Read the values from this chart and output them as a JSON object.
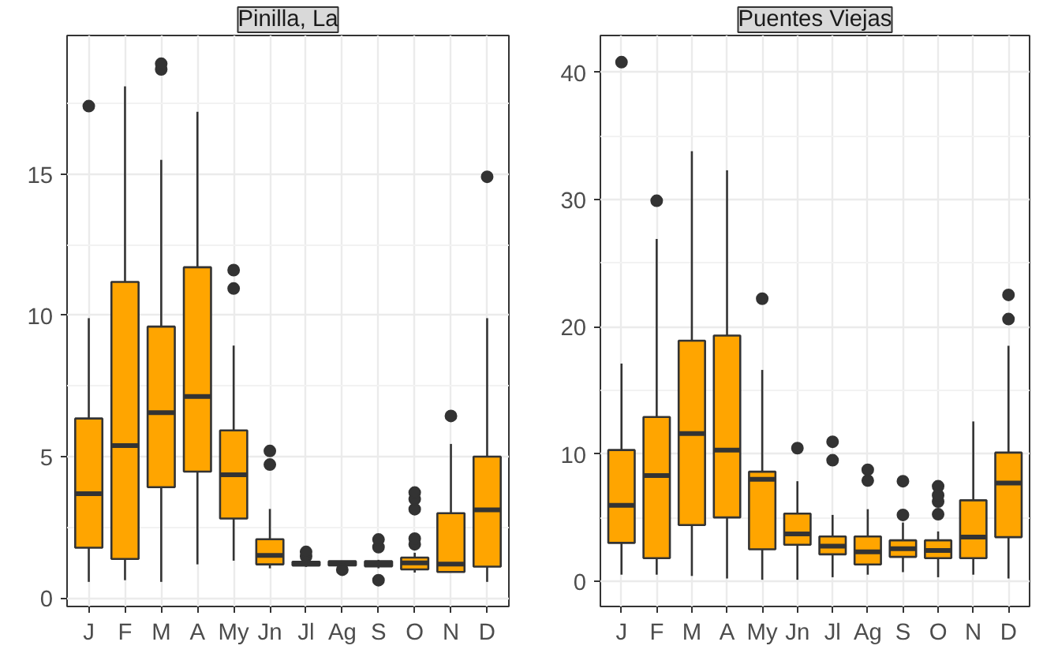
{
  "chart_data": [
    {
      "type": "box",
      "title": "Pinilla, La",
      "categories": [
        "J",
        "F",
        "M",
        "A",
        "My",
        "Jn",
        "Jl",
        "Ag",
        "S",
        "O",
        "N",
        "D"
      ],
      "color": "#ffa500",
      "ylim": [
        -0.3,
        19.9
      ],
      "yticks": [
        0,
        5,
        10,
        15
      ],
      "grid": true,
      "boxes": [
        {
          "low": 0.57,
          "q1": 1.78,
          "median": 3.69,
          "q3": 6.35,
          "high": 9.9,
          "outliers": [
            17.4
          ]
        },
        {
          "low": 0.63,
          "q1": 1.38,
          "median": 5.39,
          "q3": 11.18,
          "high": 18.1
        },
        {
          "low": 0.57,
          "q1": 3.92,
          "median": 6.56,
          "q3": 9.6,
          "high": 15.5,
          "outliers": [
            18.7,
            18.9
          ]
        },
        {
          "low": 1.19,
          "q1": 4.47,
          "median": 7.13,
          "q3": 11.7,
          "high": 17.2
        },
        {
          "low": 1.32,
          "q1": 2.81,
          "median": 4.36,
          "q3": 5.93,
          "high": 8.93,
          "outliers": [
            10.95,
            11.6
          ]
        },
        {
          "low": 1.05,
          "q1": 1.19,
          "median": 1.51,
          "q3": 2.08,
          "high": 3.15,
          "outliers": [
            4.72,
            5.2
          ]
        },
        {
          "low": 1.1,
          "q1": 1.15,
          "median": 1.2,
          "q3": 1.28,
          "high": 1.35,
          "outliers": [
            1.47,
            1.63
          ]
        },
        {
          "low": 1.1,
          "q1": 1.15,
          "median": 1.22,
          "q3": 1.3,
          "high": 1.3,
          "outliers": [
            1.0
          ]
        },
        {
          "low": 1.05,
          "q1": 1.12,
          "median": 1.22,
          "q3": 1.3,
          "high": 1.35,
          "outliers": [
            0.63,
            1.8,
            2.07
          ]
        },
        {
          "low": 0.9,
          "q1": 1.01,
          "median": 1.24,
          "q3": 1.43,
          "high": 1.6,
          "outliers": [
            1.9,
            2.1,
            3.14,
            3.5,
            3.73
          ]
        },
        {
          "low": 0.9,
          "q1": 0.92,
          "median": 1.2,
          "q3": 3.0,
          "high": 5.45,
          "outliers": [
            6.44
          ]
        },
        {
          "low": 0.57,
          "q1": 1.11,
          "median": 3.12,
          "q3": 5.0,
          "high": 9.9,
          "outliers": [
            14.9
          ]
        }
      ]
    },
    {
      "type": "box",
      "title": "Puentes Viejas",
      "categories": [
        "J",
        "F",
        "M",
        "A",
        "My",
        "Jn",
        "Jl",
        "Ag",
        "S",
        "O",
        "N",
        "D"
      ],
      "color": "#ffa500",
      "ylim": [
        -2.0,
        42.9
      ],
      "yticks": [
        0,
        10,
        20,
        30,
        40
      ],
      "grid": true,
      "boxes": [
        {
          "low": 0.5,
          "q1": 3.0,
          "median": 5.95,
          "q3": 10.3,
          "high": 17.1,
          "outliers": [
            40.8
          ]
        },
        {
          "low": 0.5,
          "q1": 1.8,
          "median": 8.3,
          "q3": 12.9,
          "high": 26.9,
          "outliers": [
            29.9
          ]
        },
        {
          "low": 0.4,
          "q1": 4.4,
          "median": 11.6,
          "q3": 18.9,
          "high": 33.8
        },
        {
          "low": 0.2,
          "q1": 5.0,
          "median": 10.3,
          "q3": 19.3,
          "high": 32.3
        },
        {
          "low": 0.1,
          "q1": 2.5,
          "median": 8.0,
          "q3": 8.6,
          "high": 16.6,
          "outliers": [
            22.2
          ]
        },
        {
          "low": 0.1,
          "q1": 2.85,
          "median": 3.7,
          "q3": 5.3,
          "high": 7.85,
          "outliers": [
            10.45
          ]
        },
        {
          "low": 0.3,
          "q1": 2.1,
          "median": 2.75,
          "q3": 3.5,
          "high": 5.2,
          "outliers": [
            9.5,
            10.95
          ]
        },
        {
          "low": 0.5,
          "q1": 1.3,
          "median": 2.3,
          "q3": 3.5,
          "high": 5.65,
          "outliers": [
            7.9,
            8.75
          ]
        },
        {
          "low": 0.7,
          "q1": 1.9,
          "median": 2.55,
          "q3": 3.2,
          "high": 4.6,
          "outliers": [
            5.2,
            7.85
          ]
        },
        {
          "low": 0.3,
          "q1": 1.8,
          "median": 2.4,
          "q3": 3.2,
          "high": 3.9,
          "outliers": [
            5.25,
            6.25,
            6.75,
            7.45
          ]
        },
        {
          "low": 0.5,
          "q1": 1.8,
          "median": 3.45,
          "q3": 6.35,
          "high": 12.55
        },
        {
          "low": 0.2,
          "q1": 3.45,
          "median": 7.7,
          "q3": 10.1,
          "high": 18.5,
          "outliers": [
            20.6,
            22.5
          ]
        }
      ]
    }
  ]
}
